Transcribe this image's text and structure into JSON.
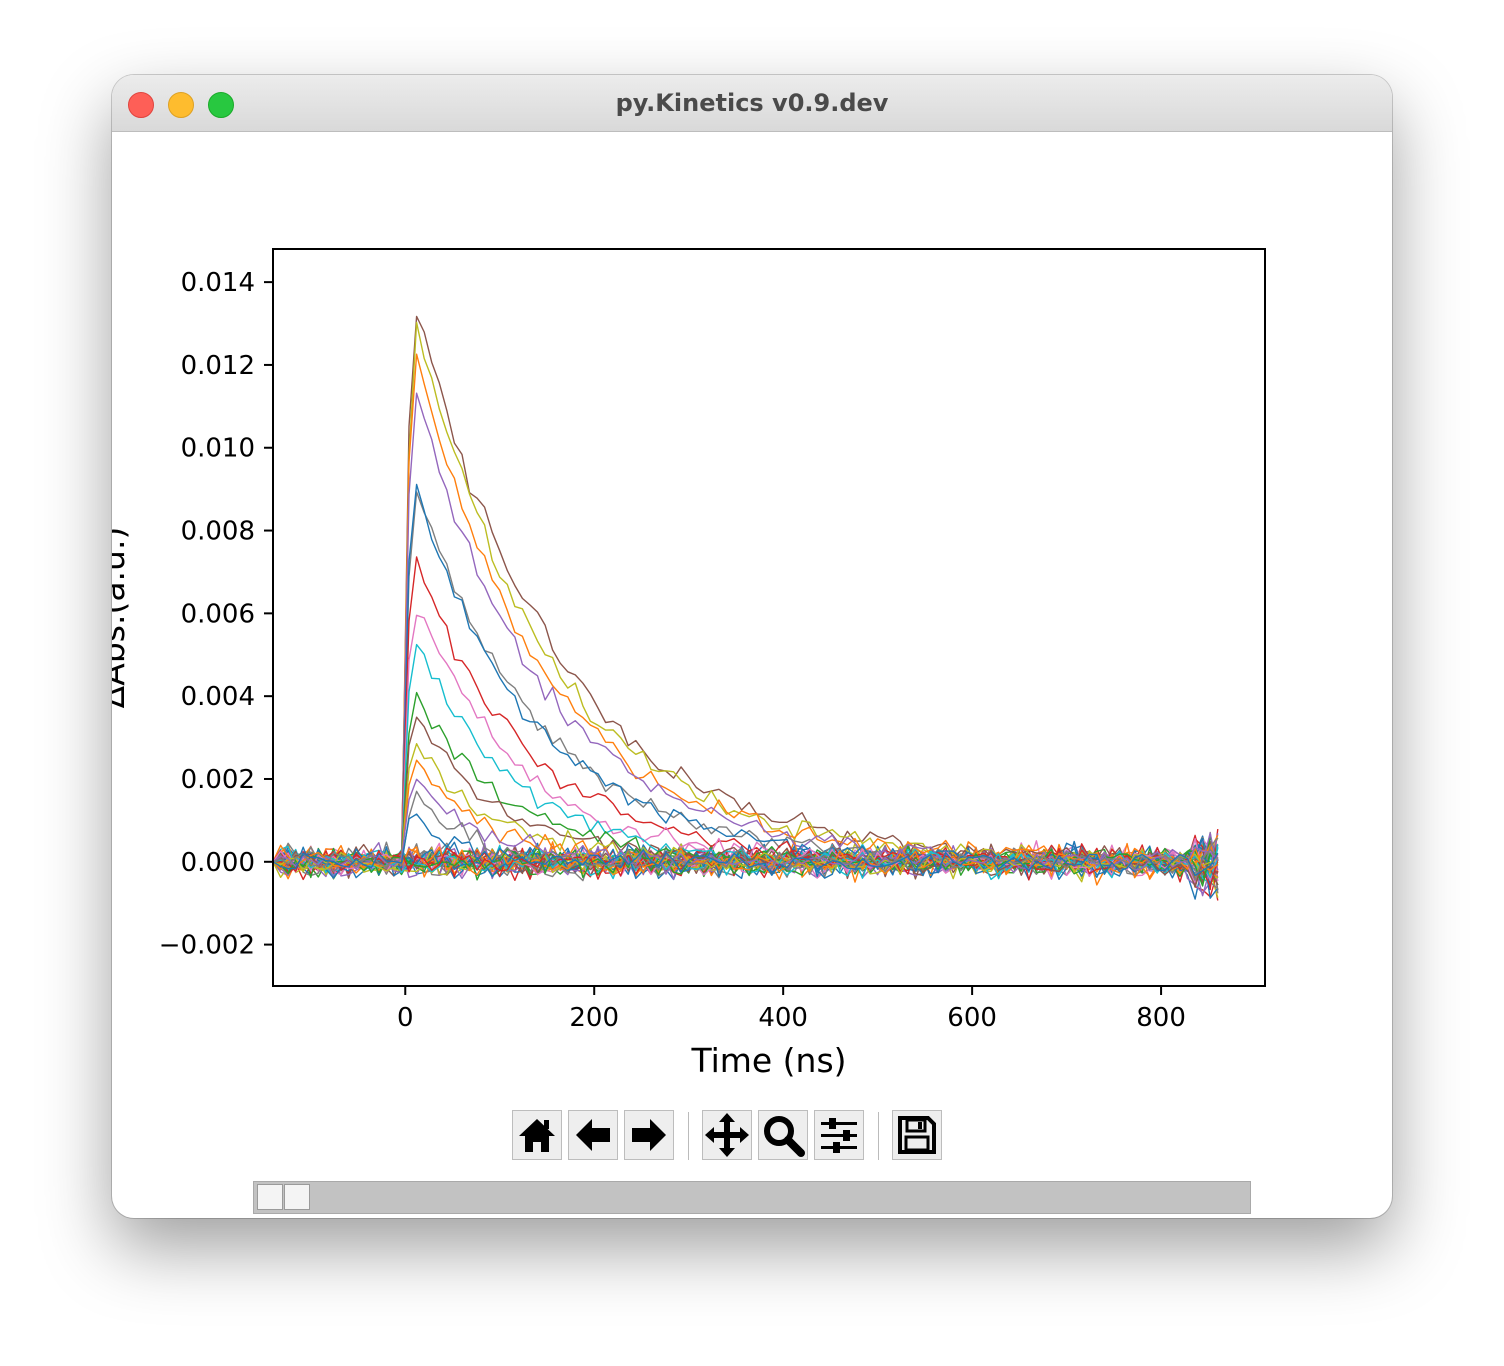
{
  "window": {
    "title": "py.Kinetics v0.9.dev"
  },
  "colors": {
    "series": [
      "#1f77b4",
      "#ff7f0e",
      "#2ca02c",
      "#d62728",
      "#9467bd",
      "#8c564b",
      "#e377c2",
      "#7f7f7f",
      "#bcbd22",
      "#17becf"
    ]
  },
  "toolbar": {
    "buttons": [
      {
        "name": "home-button",
        "icon": "home-icon"
      },
      {
        "name": "back-button",
        "icon": "arrow-left-icon"
      },
      {
        "name": "forward-button",
        "icon": "arrow-right-icon"
      },
      {
        "name": "pan-button",
        "icon": "move-icon"
      },
      {
        "name": "zoom-button",
        "icon": "magnifier-icon"
      },
      {
        "name": "configure-subplots-button",
        "icon": "sliders-icon"
      },
      {
        "name": "save-button",
        "icon": "floppy-disk-icon"
      }
    ]
  },
  "chart_data": {
    "type": "line",
    "title": "",
    "xlabel": "Time (ns)",
    "ylabel": "ΔAbs.(a.u.)",
    "xlim": [
      -140,
      910
    ],
    "ylim": [
      -0.003,
      0.0148
    ],
    "xticks": [
      0,
      200,
      400,
      600,
      800
    ],
    "xtick_labels": [
      "0",
      "200",
      "400",
      "600",
      "800"
    ],
    "yticks": [
      -0.002,
      0,
      0.002,
      0.004,
      0.006,
      0.008,
      0.01,
      0.012,
      0.014
    ],
    "ytick_labels": [
      "−0.002",
      "0.000",
      "0.002",
      "0.004",
      "0.006",
      "0.008",
      "0.010",
      "0.012",
      "0.014"
    ],
    "grid": false,
    "legend": "none",
    "x_range": [
      -140,
      860
    ],
    "x_step": 8,
    "decay_traces": [
      {
        "peak": 0.014,
        "tau": 150
      },
      {
        "peak": 0.0135,
        "tau": 145
      },
      {
        "peak": 0.0127,
        "tau": 140
      },
      {
        "peak": 0.0118,
        "tau": 138
      },
      {
        "peak": 0.0094,
        "tau": 132
      },
      {
        "peak": 0.0094,
        "tau": 128
      },
      {
        "peak": 0.0076,
        "tau": 120
      },
      {
        "peak": 0.0065,
        "tau": 112
      },
      {
        "peak": 0.0056,
        "tau": 105
      },
      {
        "peak": 0.0042,
        "tau": 100
      },
      {
        "peak": 0.0038,
        "tau": 92
      },
      {
        "peak": 0.003,
        "tau": 85
      },
      {
        "peak": 0.0026,
        "tau": 75
      },
      {
        "peak": 0.0022,
        "tau": 65
      },
      {
        "peak": 0.0018,
        "tau": 55
      },
      {
        "peak": 0.0012,
        "tau": 45
      }
    ],
    "noise_traces": 34
  }
}
